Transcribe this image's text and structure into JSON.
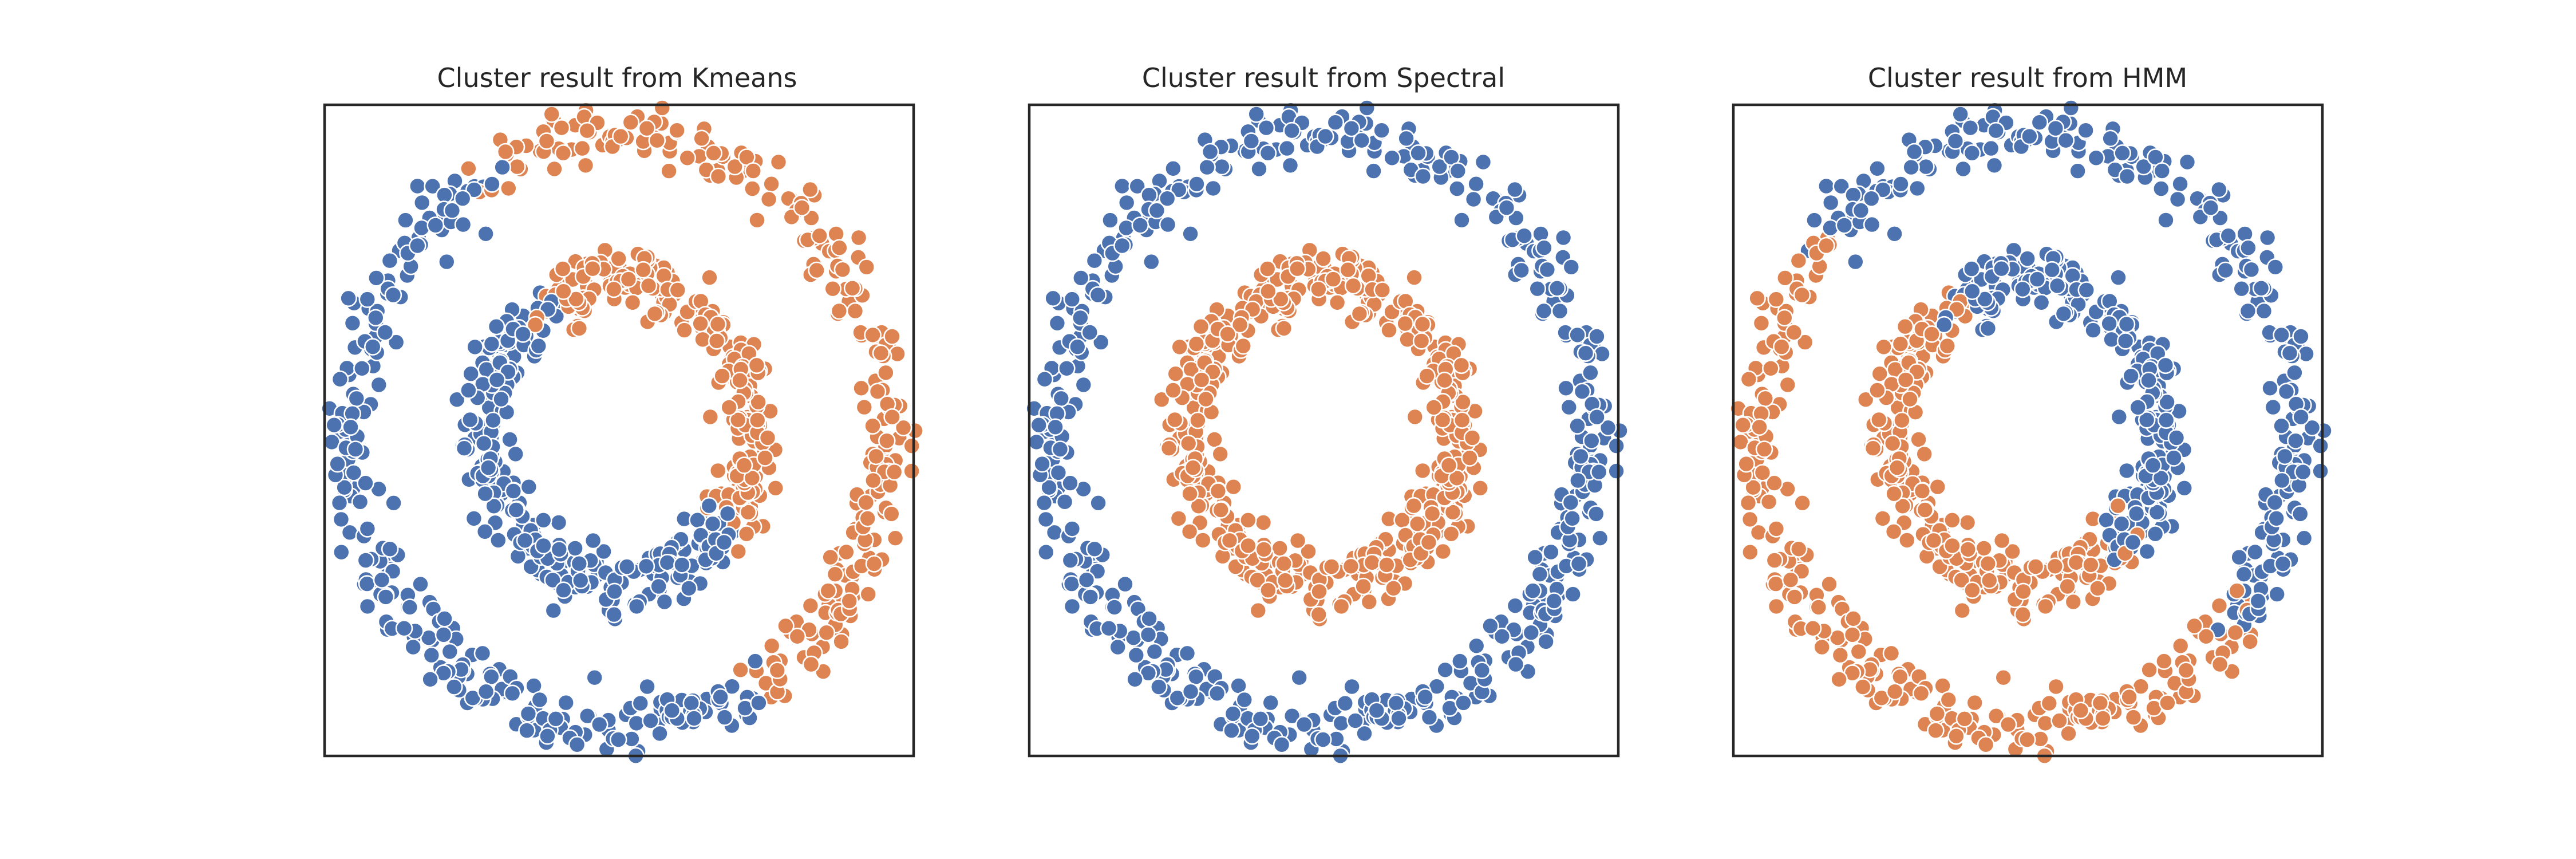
{
  "figure": {
    "background": "#ffffff",
    "series_colors": {
      "cluster-0": "#4c72b0",
      "cluster-1": "#dd8452"
    }
  },
  "chart_data": [
    {
      "type": "scatter",
      "title": "Cluster result from Kmeans",
      "xlabel": "",
      "ylabel": "",
      "xlim": [
        -1.1,
        1.1
      ],
      "ylim": [
        -1.1,
        1.1
      ],
      "grid": false,
      "ticks": false,
      "dataset": {
        "kind": "concentric-circles",
        "outer_radius": 1.0,
        "inner_radius": 0.5,
        "noise": 0.05,
        "points_per_ring": 500
      },
      "series": [
        {
          "color": "#4c72b0",
          "outer_ring_angles_deg": [
            120,
            300
          ],
          "inner_ring_angles_deg": [
            120,
            320
          ]
        },
        {
          "color": "#dd8452",
          "outer_ring_angles_deg": [
            -60,
            120
          ],
          "inner_ring_angles_deg": [
            -40,
            120
          ]
        }
      ]
    },
    {
      "type": "scatter",
      "title": "Cluster result from Spectral",
      "xlabel": "",
      "ylabel": "",
      "xlim": [
        -1.1,
        1.1
      ],
      "ylim": [
        -1.1,
        1.1
      ],
      "grid": false,
      "ticks": false,
      "dataset": {
        "kind": "concentric-circles",
        "outer_radius": 1.0,
        "inner_radius": 0.5,
        "noise": 0.05,
        "points_per_ring": 500
      },
      "series": [
        {
          "color": "#4c72b0",
          "outer_ring_angles_deg": [
            0,
            360
          ],
          "inner_ring_angles_deg": []
        },
        {
          "color": "#dd8452",
          "outer_ring_angles_deg": [],
          "inner_ring_angles_deg": [
            0,
            360
          ]
        }
      ]
    },
    {
      "type": "scatter",
      "title": "Cluster result from HMM",
      "xlabel": "",
      "ylabel": "",
      "xlim": [
        -1.1,
        1.1
      ],
      "ylim": [
        -1.1,
        1.1
      ],
      "grid": false,
      "ticks": false,
      "dataset": {
        "kind": "concentric-circles",
        "outer_radius": 1.0,
        "inner_radius": 0.5,
        "noise": 0.05,
        "points_per_ring": 500
      },
      "series": [
        {
          "color": "#4c72b0",
          "outer_ring_angles_deg": [
            -40,
            140
          ],
          "inner_ring_angles_deg": [
            -50,
            120
          ]
        },
        {
          "color": "#dd8452",
          "outer_ring_angles_deg": [
            140,
            320
          ],
          "inner_ring_angles_deg": [
            120,
            310
          ]
        }
      ]
    }
  ]
}
